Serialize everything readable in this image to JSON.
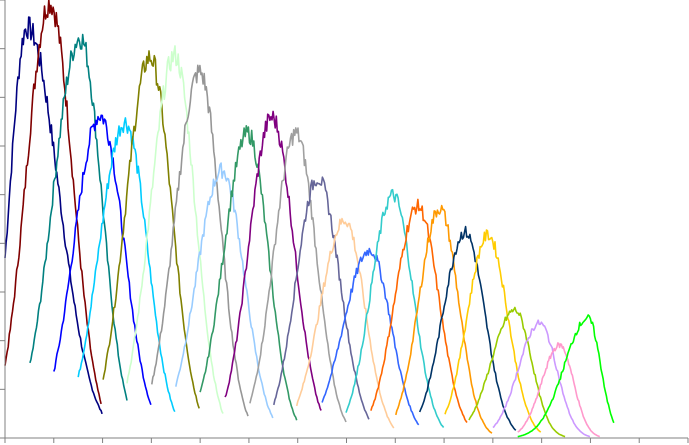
{
  "chart_data": {
    "type": "line",
    "title": "",
    "xlabel": "",
    "ylabel": "",
    "xlim": [
      0,
      14
    ],
    "ylim": [
      0,
      9
    ],
    "x_tick_count": 15,
    "y_tick_count": 10,
    "grid": false,
    "legend": "none",
    "tick_labels_shown": false,
    "series_shape": "noisy peak per series: start point, peak point, end point (data units)",
    "series": [
      {
        "color": "#000080",
        "start": [
          0.0,
          3.7
        ],
        "peak": [
          0.45,
          8.44
        ],
        "end": [
          1.99,
          0.51
        ]
      },
      {
        "color": "#800000",
        "start": [
          0.0,
          1.5
        ],
        "peak": [
          0.92,
          8.95
        ],
        "end": [
          1.97,
          0.72
        ]
      },
      {
        "color": "#008080",
        "start": [
          0.51,
          1.5
        ],
        "peak": [
          1.54,
          8.23
        ],
        "end": [
          2.5,
          0.78
        ]
      },
      {
        "color": "#0000FF",
        "start": [
          1.0,
          1.36
        ],
        "peak": [
          1.95,
          6.63
        ],
        "end": [
          2.99,
          0.68
        ]
      },
      {
        "color": "#00CCFF",
        "start": [
          1.5,
          1.25
        ],
        "peak": [
          2.46,
          6.49
        ],
        "end": [
          3.48,
          0.53
        ]
      },
      {
        "color": "#808000",
        "start": [
          2.01,
          1.23
        ],
        "peak": [
          2.97,
          7.82
        ],
        "end": [
          3.98,
          0.62
        ]
      },
      {
        "color": "#CCFFCC",
        "start": [
          2.5,
          1.15
        ],
        "peak": [
          3.48,
          7.86
        ],
        "end": [
          4.47,
          0.49
        ]
      },
      {
        "color": "#969696",
        "start": [
          3.01,
          1.13
        ],
        "peak": [
          3.99,
          7.52
        ],
        "end": [
          4.98,
          0.45
        ]
      },
      {
        "color": "#99CCFF",
        "start": [
          3.5,
          1.07
        ],
        "peak": [
          4.45,
          5.5
        ],
        "end": [
          5.49,
          0.41
        ]
      },
      {
        "color": "#339966",
        "start": [
          4.0,
          0.92
        ],
        "peak": [
          4.98,
          6.26
        ],
        "end": [
          5.98,
          0.37
        ]
      },
      {
        "color": "#800080",
        "start": [
          4.51,
          0.82
        ],
        "peak": [
          5.47,
          6.59
        ],
        "end": [
          6.48,
          0.55
        ]
      },
      {
        "color": "#A0A0A0",
        "start": [
          5.02,
          0.72
        ],
        "peak": [
          5.96,
          6.26
        ],
        "end": [
          6.99,
          0.33
        ]
      },
      {
        "color": "#666699",
        "start": [
          5.51,
          0.7
        ],
        "peak": [
          6.41,
          5.34
        ],
        "end": [
          7.46,
          0.39
        ]
      },
      {
        "color": "#FFCC99",
        "start": [
          5.98,
          0.68
        ],
        "peak": [
          6.97,
          4.48
        ],
        "end": [
          7.97,
          0.21
        ]
      },
      {
        "color": "#3366FF",
        "start": [
          6.5,
          0.74
        ],
        "peak": [
          7.48,
          3.86
        ],
        "end": [
          8.48,
          0.27
        ]
      },
      {
        "color": "#33CCCC",
        "start": [
          6.99,
          0.53
        ],
        "peak": [
          7.95,
          4.99
        ],
        "end": [
          8.99,
          0.21
        ]
      },
      {
        "color": "#FF6600",
        "start": [
          7.5,
          0.57
        ],
        "peak": [
          8.46,
          4.76
        ],
        "end": [
          9.47,
          0.31
        ]
      },
      {
        "color": "#FF9900",
        "start": [
          8.01,
          0.49
        ],
        "peak": [
          8.91,
          4.72
        ],
        "end": [
          9.98,
          0.1
        ]
      },
      {
        "color": "#003366",
        "start": [
          8.5,
          0.53
        ],
        "peak": [
          9.43,
          4.23
        ],
        "end": [
          10.47,
          0.16
        ]
      },
      {
        "color": "#FFCC00",
        "start": [
          9.02,
          0.49
        ],
        "peak": [
          9.9,
          4.17
        ],
        "end": [
          10.98,
          0.12
        ]
      },
      {
        "color": "#99CC00",
        "start": [
          9.51,
          0.37
        ],
        "peak": [
          10.45,
          2.63
        ],
        "end": [
          11.48,
          0.0
        ]
      },
      {
        "color": "#CC99FF",
        "start": [
          10.0,
          0.21
        ],
        "peak": [
          10.96,
          2.36
        ],
        "end": [
          11.99,
          0.0
        ]
      },
      {
        "color": "#FF99CC",
        "start": [
          10.51,
          0.12
        ],
        "peak": [
          11.37,
          1.91
        ],
        "end": [
          12.19,
          0.0
        ]
      },
      {
        "color": "#00FF00",
        "start": [
          10.51,
          0.02
        ],
        "peak": [
          11.95,
          2.46
        ],
        "end": [
          12.48,
          0.31
        ]
      }
    ]
  }
}
